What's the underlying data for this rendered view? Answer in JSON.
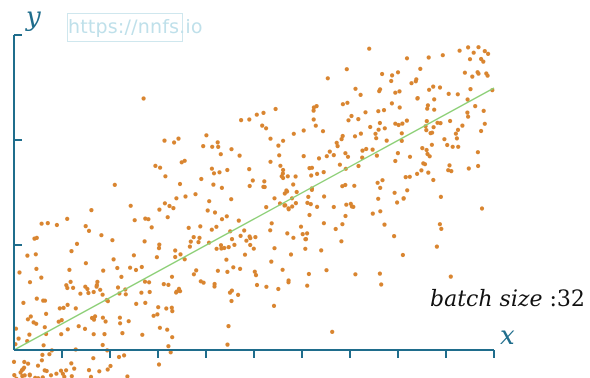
{
  "watermark": "https://nnfs.io",
  "batch_label": {
    "name": "batch size",
    "value": ":32"
  },
  "colors": {
    "axis": "#1f6d8c",
    "points": "#d98530",
    "fit_line": "#8ccf76",
    "watermark": "#bfe0ea"
  },
  "chart_data": {
    "type": "scatter",
    "title": "",
    "xlabel": "x",
    "ylabel": "y",
    "xlim": [
      0,
      1
    ],
    "ylim": [
      -0.15,
      1.2
    ],
    "x_tick_count": 10,
    "y_tick_count": 3,
    "grid": false,
    "fit_line": {
      "x": [
        0,
        1
      ],
      "y": [
        0.0,
        1.0
      ]
    },
    "generator": {
      "n_points": 520,
      "seed": 29,
      "slope": 1.0,
      "intercept": 0.0,
      "noise": 0.2
    },
    "points": [
      [
        0.003,
        0.022
      ],
      [
        0.05,
        -0.06
      ],
      [
        0.118,
        0.26
      ],
      [
        0.21,
        0.63
      ],
      [
        0.27,
        0.96
      ],
      [
        0.545,
        0.92
      ],
      [
        0.64,
        0.38
      ],
      [
        0.74,
        1.15
      ],
      [
        0.765,
        0.25
      ],
      [
        0.8,
        1.06
      ],
      [
        0.91,
        0.28
      ],
      [
        0.95,
        1.11
      ],
      [
        0.975,
        0.54
      ]
    ]
  }
}
